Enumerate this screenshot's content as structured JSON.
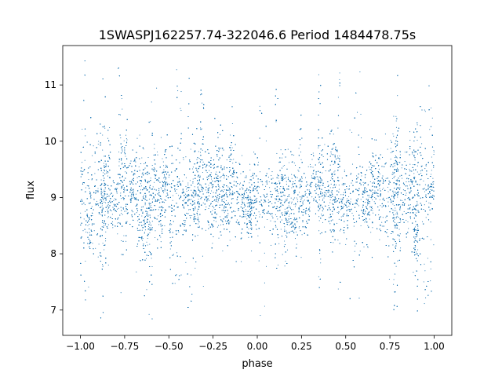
{
  "chart_data": {
    "type": "scatter",
    "title": "1SWASPJ162257.74-322046.6 Period 1484478.75s",
    "xlabel": "phase",
    "ylabel": "flux",
    "xlim": [
      -1.1,
      1.1
    ],
    "ylim": [
      6.55,
      11.7
    ],
    "grid": false,
    "legend": "none",
    "x_ticks": [
      -1.0,
      -0.75,
      -0.5,
      -0.25,
      0.0,
      0.25,
      0.5,
      0.75,
      1.0
    ],
    "x_tick_labels": [
      "−1.00",
      "−0.75",
      "−0.50",
      "−0.25",
      "0.00",
      "0.25",
      "0.50",
      "0.75",
      "1.00"
    ],
    "y_ticks": [
      7,
      8,
      9,
      10,
      11
    ],
    "y_tick_labels": [
      "7",
      "8",
      "9",
      "10",
      "11"
    ],
    "series": [
      {
        "color": "#1f77b4",
        "point_count": 22000,
        "baseline_flux": 9.0,
        "scatter_sigma": 0.35,
        "phase_range": [
          -1.0,
          1.0
        ],
        "segments": [
          {
            "phase_start": -1.0,
            "phase_end": 1.0,
            "mean_flux": 9.05,
            "flux_min": 6.8,
            "flux_max": 11.5
          }
        ]
      }
    ]
  }
}
